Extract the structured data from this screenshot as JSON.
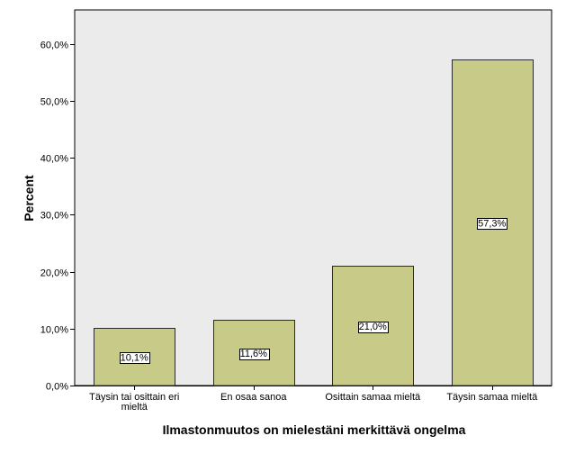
{
  "chart_data": {
    "type": "bar",
    "categories": [
      [
        "Täysin tai osittain eri",
        "mieltä"
      ],
      [
        "En osaa sanoa"
      ],
      [
        "Osittain samaa mieltä"
      ],
      [
        "Täysin samaa mieltä"
      ]
    ],
    "values": [
      10.1,
      11.6,
      21.0,
      57.3
    ],
    "data_labels": [
      "10,1%",
      "11,6%",
      "21,0%",
      "57,3%"
    ],
    "title": "",
    "xlabel": "Ilmastonmuutos on mielestäni merkittävä ongelma",
    "ylabel": "Percent",
    "ylim": [
      0,
      66
    ],
    "yticks": [
      0,
      10,
      20,
      30,
      40,
      50,
      60
    ],
    "ytick_labels": [
      "0,0%",
      "10,0%",
      "20,0%",
      "30,0%",
      "40,0%",
      "50,0%",
      "60,0%"
    ],
    "grid": false,
    "colors": {
      "bar": "#c8ca87",
      "bar_stroke": "#2b2b2b",
      "plot_bg": "#ebebeb"
    }
  }
}
